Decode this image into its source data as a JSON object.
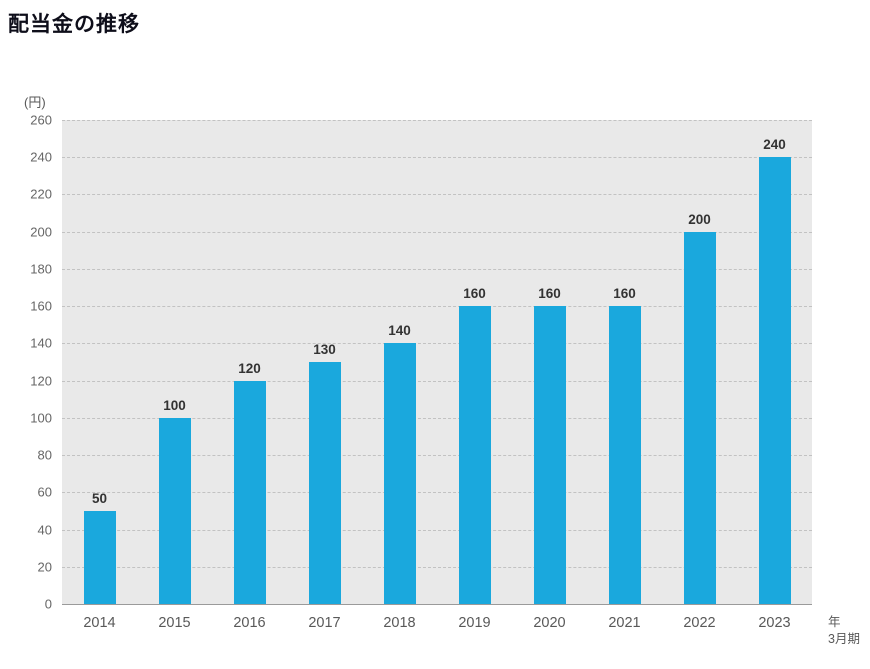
{
  "title": "配当金の推移",
  "axis": {
    "unit_y": "(円)",
    "unit_x_line1": "年",
    "unit_x_line2": "3月期"
  },
  "chart_data": {
    "type": "bar",
    "title": "配当金の推移",
    "categories": [
      "2014",
      "2015",
      "2016",
      "2017",
      "2018",
      "2019",
      "2020",
      "2021",
      "2022",
      "2023"
    ],
    "values": [
      50,
      100,
      120,
      130,
      140,
      160,
      160,
      160,
      200,
      240
    ],
    "xlabel": "年 3月期",
    "ylabel": "(円)",
    "ylim": [
      0,
      260
    ],
    "ytick_step": 20,
    "grid": true,
    "legend": "none",
    "bar_color": "#1aa8dd",
    "plot_bg": "#e9e9e9",
    "gridline_style": "dashed"
  }
}
